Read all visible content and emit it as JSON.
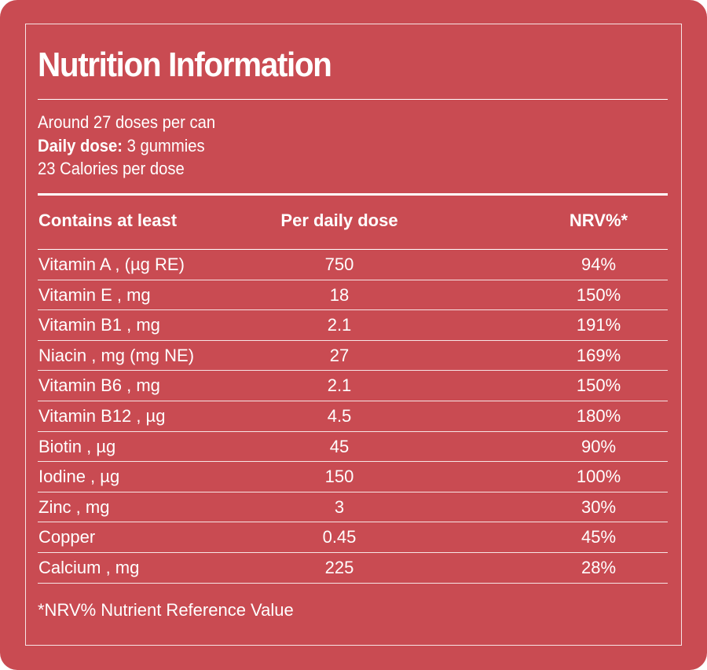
{
  "title": "Nutrition Information",
  "info": {
    "line1": "Around 27 doses per can",
    "daily_dose_label": "Daily dose:",
    "daily_dose_value": " 3 gummies",
    "line3": "23 Calories per dose"
  },
  "table": {
    "headers": [
      "Contains at least",
      "Per daily dose",
      "NRV%*"
    ],
    "rows": [
      [
        "Vitamin A , (µg RE)",
        "750",
        "94%"
      ],
      [
        "Vitamin E  , mg",
        "18",
        "150%"
      ],
      [
        "Vitamin B1 , mg",
        "2.1",
        "191%"
      ],
      [
        "Niacin , mg (mg NE)",
        "27",
        "169%"
      ],
      [
        "Vitamin B6 , mg",
        "2.1",
        "150%"
      ],
      [
        "Vitamin B12 , µg",
        "4.5",
        "180%"
      ],
      [
        "Biotin , µg",
        "45",
        "90%"
      ],
      [
        "Iodine , µg",
        "150",
        "100%"
      ],
      [
        "Zinc , mg",
        "3",
        "30%"
      ],
      [
        "Copper",
        "0.45",
        "45%"
      ],
      [
        "Calcium , mg",
        "225",
        "28%"
      ]
    ]
  },
  "footnote": "*NRV% Nutrient Reference Value",
  "colors": {
    "background": "#c94b52",
    "text": "#ffffff"
  }
}
